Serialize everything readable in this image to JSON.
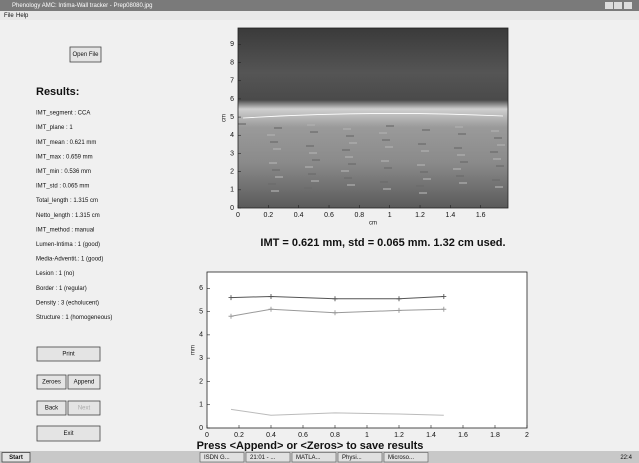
{
  "window": {
    "title": "Phenology AMC: Intima-Wall tracker - Prep08080.jpg"
  },
  "menu": [
    "File",
    "Help"
  ],
  "buttons": {
    "open": "Open File",
    "print": "Print",
    "zeroes": "Zeroes",
    "append": "Append",
    "back": "Back",
    "next": "Next",
    "exit": "Exit"
  },
  "results": {
    "heading": "Results:",
    "items": [
      "IMT_segment : CCA",
      "IMT_plane : 1",
      "IMT_mean : 0.621 mm",
      "IMT_max : 0.659 mm",
      "IMT_min : 0.536 mm",
      "IMT_std : 0.065 mm",
      "Total_length : 1.315 cm",
      "Netto_length : 1.315 cm",
      "IMT_method : manual",
      "Lumen-Intima : 1 (good)",
      "Media-Adventit.: 1 (good)",
      "Lesion : 1 (no)",
      "Border : 1 (regular)",
      "Density : 3 (echolucent)",
      "Structure : 1 (homogeneous)"
    ]
  },
  "chart_data": [
    {
      "type": "image",
      "xlabel": "cm",
      "ylabel": "cm",
      "xlim": [
        0,
        1.78
      ],
      "ylim": [
        0,
        9.9
      ],
      "xticks": [
        0,
        0.2,
        0.4,
        0.6,
        0.8,
        1,
        1.2,
        1.4,
        1.6
      ],
      "yticks": [
        0,
        1,
        2,
        3,
        4,
        5,
        6,
        7,
        8,
        9
      ],
      "caption": "IMT = 0.621 mm, std = 0.065 mm. 1.32 cm used."
    },
    {
      "type": "line",
      "ylabel": "mm",
      "xlim": [
        0,
        2
      ],
      "ylim": [
        0,
        6.7
      ],
      "xticks": [
        0,
        0.2,
        0.4,
        0.6,
        0.8,
        1,
        1.2,
        1.4,
        1.6,
        1.8,
        2
      ],
      "yticks": [
        0,
        1,
        2,
        3,
        4,
        5,
        6
      ],
      "x": [
        0.15,
        0.4,
        0.8,
        1.2,
        1.48
      ],
      "series": [
        {
          "color": "#555555",
          "marker": "+",
          "values": [
            5.6,
            5.65,
            5.55,
            5.55,
            5.65
          ]
        },
        {
          "color": "#999999",
          "marker": "+",
          "values": [
            4.8,
            5.1,
            4.95,
            5.05,
            5.1
          ]
        },
        {
          "color": "#bbbbbb",
          "values": [
            0.8,
            0.55,
            0.65,
            0.6,
            0.55
          ]
        }
      ]
    }
  ],
  "status": "Press <Append> or <Zeros> to save results",
  "taskbar": {
    "start": "Start",
    "items": [
      "ISDN G...",
      "21:01 - ...",
      "MATLA...",
      "Physi...",
      "Microso..."
    ],
    "clock": "22:4"
  }
}
